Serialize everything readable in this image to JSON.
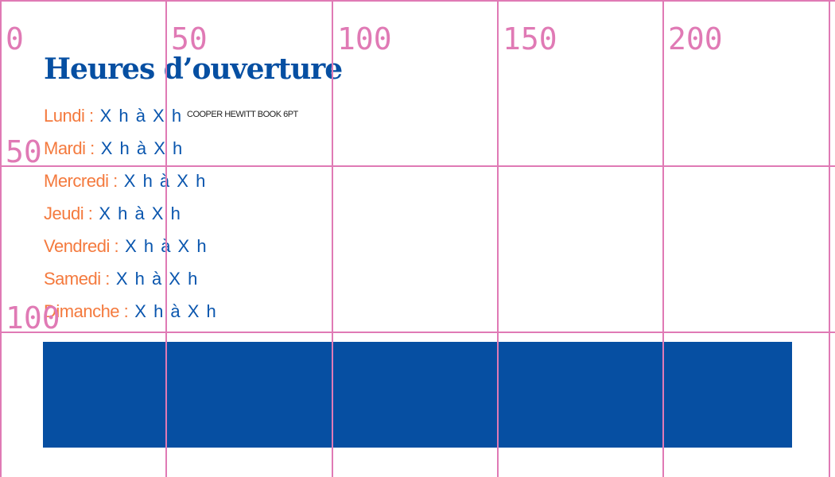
{
  "title": "Heures d’ouverture",
  "font_note": "COOPER HEWITT BOOK 6PT",
  "schedule": [
    {
      "day": "Lundi :",
      "hours": "X h à X h"
    },
    {
      "day": "Mardi :",
      "hours": "X h à X h"
    },
    {
      "day": "Mercredi :",
      "hours": "X h à X h"
    },
    {
      "day": "Jeudi :",
      "hours": "X h à X h"
    },
    {
      "day": "Vendredi :",
      "hours": "X h à X h"
    },
    {
      "day": "Samedi :",
      "hours": "X h à X h"
    },
    {
      "day": "Dimanche :",
      "hours": "X h à X h"
    }
  ],
  "grid": {
    "x_labels": [
      "0",
      "50",
      "100",
      "150",
      "200"
    ],
    "y_labels": [
      "50",
      "100"
    ]
  },
  "colors": {
    "primary_blue": "#064fa2",
    "accent_orange": "#f47a3e",
    "grid_pink": "#e07ab5"
  }
}
